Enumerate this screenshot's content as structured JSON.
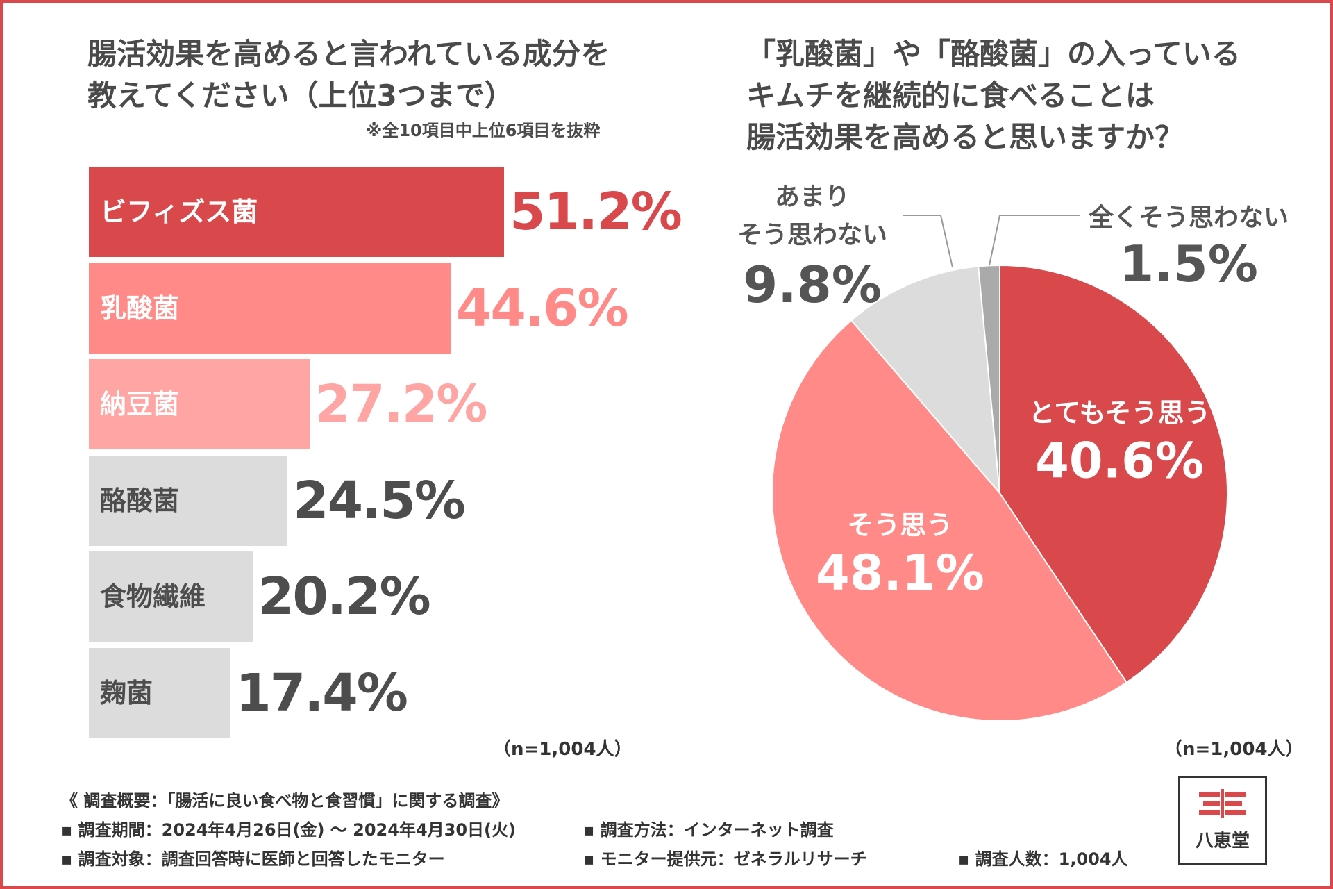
{
  "bar_chart": {
    "title_line1": "腸活効果を高めると言われている成分を",
    "title_line2": "教えてください（上位3つまで）",
    "note": "※全10項目中上位6項目を抜粋",
    "sample": "（n=1,004人）"
  },
  "pie_chart": {
    "title_line1": "「乳酸菌」や「酪酸菌」の入っている",
    "title_line2": "キムチを継続的に食べることは",
    "title_line2b": "腸活効果を高めると思いますか？",
    "sample": "（n=1,004人）"
  },
  "chart_data": [
    {
      "type": "bar",
      "orientation": "horizontal",
      "categories": [
        "ビフィズス菌",
        "乳酸菌",
        "納豆菌",
        "酪酸菌",
        "食物繊維",
        "麹菌"
      ],
      "values": [
        51.2,
        44.6,
        27.2,
        24.5,
        20.2,
        17.4
      ],
      "value_labels": [
        "51.2%",
        "44.6%",
        "27.2%",
        "24.5%",
        "20.2%",
        "17.4%"
      ],
      "colors": [
        "#d9484a",
        "#ff8a87",
        "#ffa6a4",
        "#dcdcdc",
        "#dcdcdc",
        "#dcdcdc"
      ],
      "value_colors": [
        "#d9484a",
        "#ff8a87",
        "#ffa6a4",
        "#4d4d4d",
        "#4d4d4d",
        "#4d4d4d"
      ],
      "label_colors": [
        "#ffffff",
        "#ffffff",
        "#ffffff",
        "#4d4d4d",
        "#4d4d4d",
        "#4d4d4d"
      ],
      "unit": "%"
    },
    {
      "type": "pie",
      "slices": [
        {
          "name_lines": [
            "とてもそう思う"
          ],
          "value": 40.6,
          "label": "40.6%",
          "color": "#d9484a"
        },
        {
          "name_lines": [
            "そう思う"
          ],
          "value": 48.1,
          "label": "48.1%",
          "color": "#ff8a87"
        },
        {
          "name_lines": [
            "あまり",
            "そう思わない"
          ],
          "value": 9.8,
          "label": "9.8%",
          "color": "#dcdcdc"
        },
        {
          "name_lines": [
            "全くそう思わない"
          ],
          "value": 1.5,
          "label": "1.5%",
          "color": "#aaaaaa"
        }
      ],
      "start": "12 o'clock",
      "direction": "clockwise"
    }
  ],
  "footer": {
    "heading": "《 調査概要：「腸活に良い食べ物と食習慣」に関する調査》",
    "period": "▪ 調査期間：2024年4月26日(金) ～ 2024年4月30日(火)",
    "method": "▪ 調査方法：インターネット調査",
    "target": "▪ 調査対象：調査回答時に医師と回答したモニター",
    "provider": "▪ モニター提供元：ゼネラルリサーチ",
    "count": "▪ 調査人数：1,004人"
  },
  "logo": {
    "text": "八恵堂",
    "color": "#d9484a"
  }
}
